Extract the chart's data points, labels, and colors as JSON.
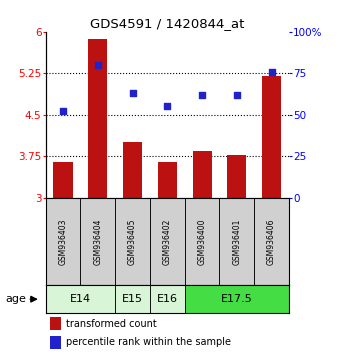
{
  "title": "GDS4591 / 1420844_at",
  "samples": [
    "GSM936403",
    "GSM936404",
    "GSM936405",
    "GSM936402",
    "GSM936400",
    "GSM936401",
    "GSM936406"
  ],
  "bar_values": [
    3.65,
    5.87,
    4.0,
    3.65,
    3.85,
    3.78,
    5.2
  ],
  "scatter_values": [
    52,
    80,
    63,
    55,
    62,
    62,
    76
  ],
  "ylim_left": [
    3.0,
    6.0
  ],
  "ylim_right": [
    0,
    100
  ],
  "yticks_left": [
    3.0,
    3.75,
    4.5,
    5.25,
    6.0
  ],
  "yticks_right": [
    0,
    25,
    50,
    75,
    100
  ],
  "ytick_labels_left": [
    "3",
    "3.75",
    "4.5",
    "5.25",
    "6"
  ],
  "ytick_labels_right": [
    "0",
    "25",
    "50",
    "75",
    "100%"
  ],
  "bar_color": "#bb1111",
  "scatter_color": "#2222cc",
  "age_groups": [
    {
      "label": "E14",
      "start": 0,
      "end": 2,
      "color": "#d8f5d8"
    },
    {
      "label": "E15",
      "start": 2,
      "end": 3,
      "color": "#d8f5d8"
    },
    {
      "label": "E16",
      "start": 3,
      "end": 4,
      "color": "#d8f5d8"
    },
    {
      "label": "E17.5",
      "start": 4,
      "end": 7,
      "color": "#44dd44"
    }
  ],
  "legend_bar_label": "transformed count",
  "legend_scatter_label": "percentile rank within the sample",
  "age_label": "age",
  "bar_bottom": 3.0,
  "sample_box_color": "#d0d0d0",
  "background_color": "#ffffff"
}
